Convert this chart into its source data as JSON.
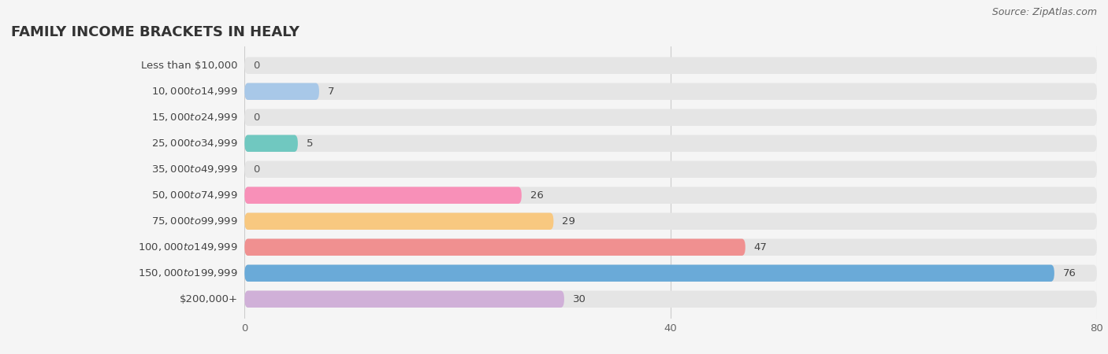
{
  "title": "FAMILY INCOME BRACKETS IN HEALY",
  "source": "Source: ZipAtlas.com",
  "categories": [
    "Less than $10,000",
    "$10,000 to $14,999",
    "$15,000 to $24,999",
    "$25,000 to $34,999",
    "$35,000 to $49,999",
    "$50,000 to $74,999",
    "$75,000 to $99,999",
    "$100,000 to $149,999",
    "$150,000 to $199,999",
    "$200,000+"
  ],
  "values": [
    0,
    7,
    0,
    5,
    0,
    26,
    29,
    47,
    76,
    30
  ],
  "bar_colors": [
    "#f4a0a0",
    "#a8c8e8",
    "#c8a8d8",
    "#70c8c0",
    "#b8b0e0",
    "#f890b8",
    "#f8c880",
    "#f09090",
    "#6aaad8",
    "#d0b0d8"
  ],
  "background_color": "#f5f5f5",
  "bar_background_color": "#e5e5e5",
  "xlim": [
    0,
    80
  ],
  "xticks": [
    0,
    40,
    80
  ],
  "title_fontsize": 13,
  "label_fontsize": 9.5,
  "value_fontsize": 9.5,
  "source_fontsize": 9
}
